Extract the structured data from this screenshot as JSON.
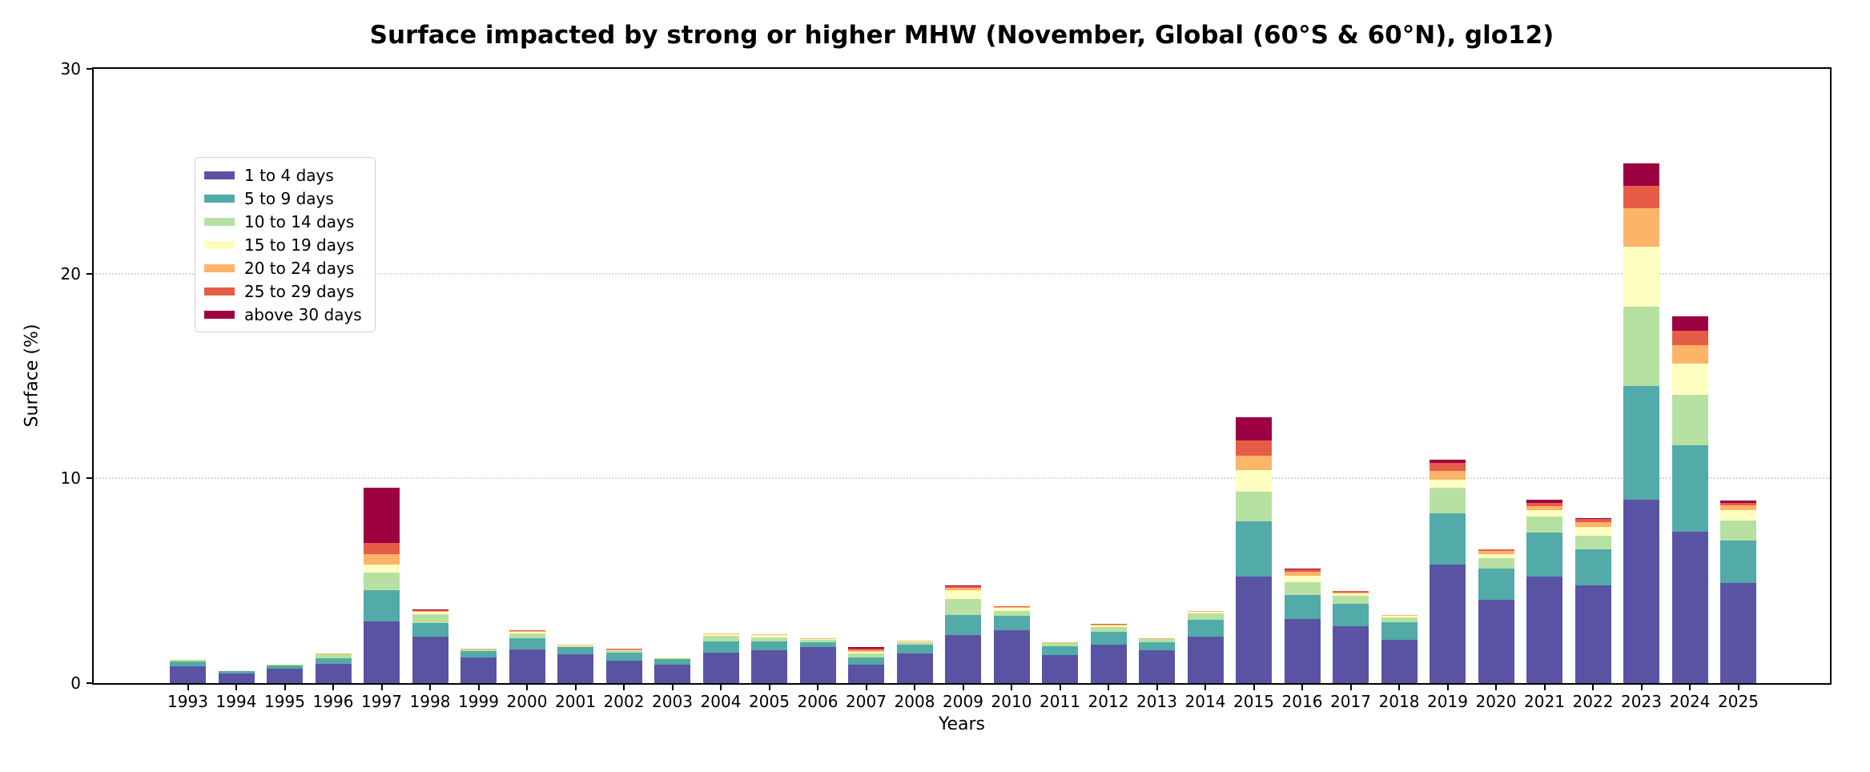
{
  "chart_data": {
    "type": "bar",
    "stacked": true,
    "title": "Surface impacted by strong or higher MHW (November, Global (60°S & 60°N), glo12)",
    "xlabel": "Years",
    "ylabel": "Surface (%)",
    "ylim": [
      0,
      30
    ],
    "yticks": [
      0,
      10,
      20,
      30
    ],
    "grid": "horizontal dotted gridlines at 10 and 20",
    "legend_position": "upper left",
    "categories": [
      "1993",
      "1994",
      "1995",
      "1996",
      "1997",
      "1998",
      "1999",
      "2000",
      "2001",
      "2002",
      "2003",
      "2004",
      "2005",
      "2006",
      "2007",
      "2008",
      "2009",
      "2010",
      "2011",
      "2012",
      "2013",
      "2014",
      "2015",
      "2016",
      "2017",
      "2018",
      "2019",
      "2020",
      "2021",
      "2022",
      "2023",
      "2024",
      "2025"
    ],
    "series": [
      {
        "name": "1 to 4 days",
        "color": "#5a53a4",
        "values": [
          0.82,
          0.48,
          0.7,
          0.94,
          3.0,
          2.25,
          1.25,
          1.63,
          1.41,
          1.11,
          0.9,
          1.5,
          1.6,
          1.76,
          0.89,
          1.43,
          2.34,
          2.6,
          1.36,
          1.88,
          1.62,
          2.27,
          5.2,
          3.12,
          2.76,
          2.13,
          5.8,
          4.05,
          5.21,
          4.79,
          8.95,
          7.4,
          4.88
        ]
      },
      {
        "name": "5 to 9 days",
        "color": "#52aaa9",
        "values": [
          0.24,
          0.1,
          0.16,
          0.27,
          1.55,
          0.7,
          0.3,
          0.56,
          0.35,
          0.39,
          0.27,
          0.55,
          0.44,
          0.25,
          0.35,
          0.45,
          1.0,
          0.69,
          0.45,
          0.62,
          0.39,
          0.82,
          2.7,
          1.17,
          1.13,
          0.84,
          2.48,
          1.55,
          2.13,
          1.75,
          5.55,
          4.2,
          2.1
        ]
      },
      {
        "name": "10 to 14 days",
        "color": "#b6e1a2",
        "values": [
          0.08,
          0.03,
          0.04,
          0.18,
          0.85,
          0.4,
          0.08,
          0.22,
          0.06,
          0.09,
          0.05,
          0.27,
          0.21,
          0.12,
          0.2,
          0.13,
          0.75,
          0.25,
          0.13,
          0.22,
          0.13,
          0.32,
          1.45,
          0.65,
          0.39,
          0.23,
          1.25,
          0.5,
          0.78,
          0.65,
          3.9,
          2.5,
          0.97
        ]
      },
      {
        "name": "15 to 19 days",
        "color": "#fdfec0",
        "values": [
          0.04,
          0.02,
          0.03,
          0.05,
          0.4,
          0.13,
          0.04,
          0.08,
          0.03,
          0.04,
          0.02,
          0.09,
          0.12,
          0.04,
          0.09,
          0.04,
          0.43,
          0.13,
          0.05,
          0.09,
          0.05,
          0.06,
          1.05,
          0.32,
          0.1,
          0.09,
          0.4,
          0.21,
          0.32,
          0.45,
          2.9,
          1.5,
          0.5
        ]
      },
      {
        "name": "20 to 24 days",
        "color": "#fbb468",
        "values": [
          0,
          0,
          0,
          0.02,
          0.5,
          0.05,
          0.02,
          0.05,
          0.02,
          0.02,
          0,
          0.03,
          0.02,
          0.02,
          0.08,
          0.02,
          0.12,
          0.04,
          0.02,
          0.04,
          0.02,
          0.04,
          0.7,
          0.16,
          0.05,
          0.04,
          0.44,
          0.14,
          0.19,
          0.23,
          1.9,
          0.9,
          0.23
        ]
      },
      {
        "name": "25 to 29 days",
        "color": "#e65d47",
        "values": [
          0,
          0,
          0,
          0,
          0.55,
          0.04,
          0,
          0.04,
          0,
          0.02,
          0,
          0,
          0,
          0,
          0.09,
          0,
          0.09,
          0.04,
          0,
          0.04,
          0,
          0,
          0.75,
          0.17,
          0.05,
          0,
          0.39,
          0.1,
          0.16,
          0.13,
          1.1,
          0.7,
          0.14
        ]
      },
      {
        "name": "above 30 days",
        "color": "#9e0142",
        "values": [
          0,
          0,
          0,
          0,
          2.7,
          0.03,
          0,
          0,
          0,
          0,
          0,
          0,
          0,
          0,
          0.07,
          0,
          0.04,
          0,
          0,
          0,
          0,
          0,
          1.15,
          0.02,
          0,
          0,
          0.14,
          0,
          0.16,
          0.05,
          1.1,
          0.7,
          0.09
        ]
      }
    ]
  }
}
